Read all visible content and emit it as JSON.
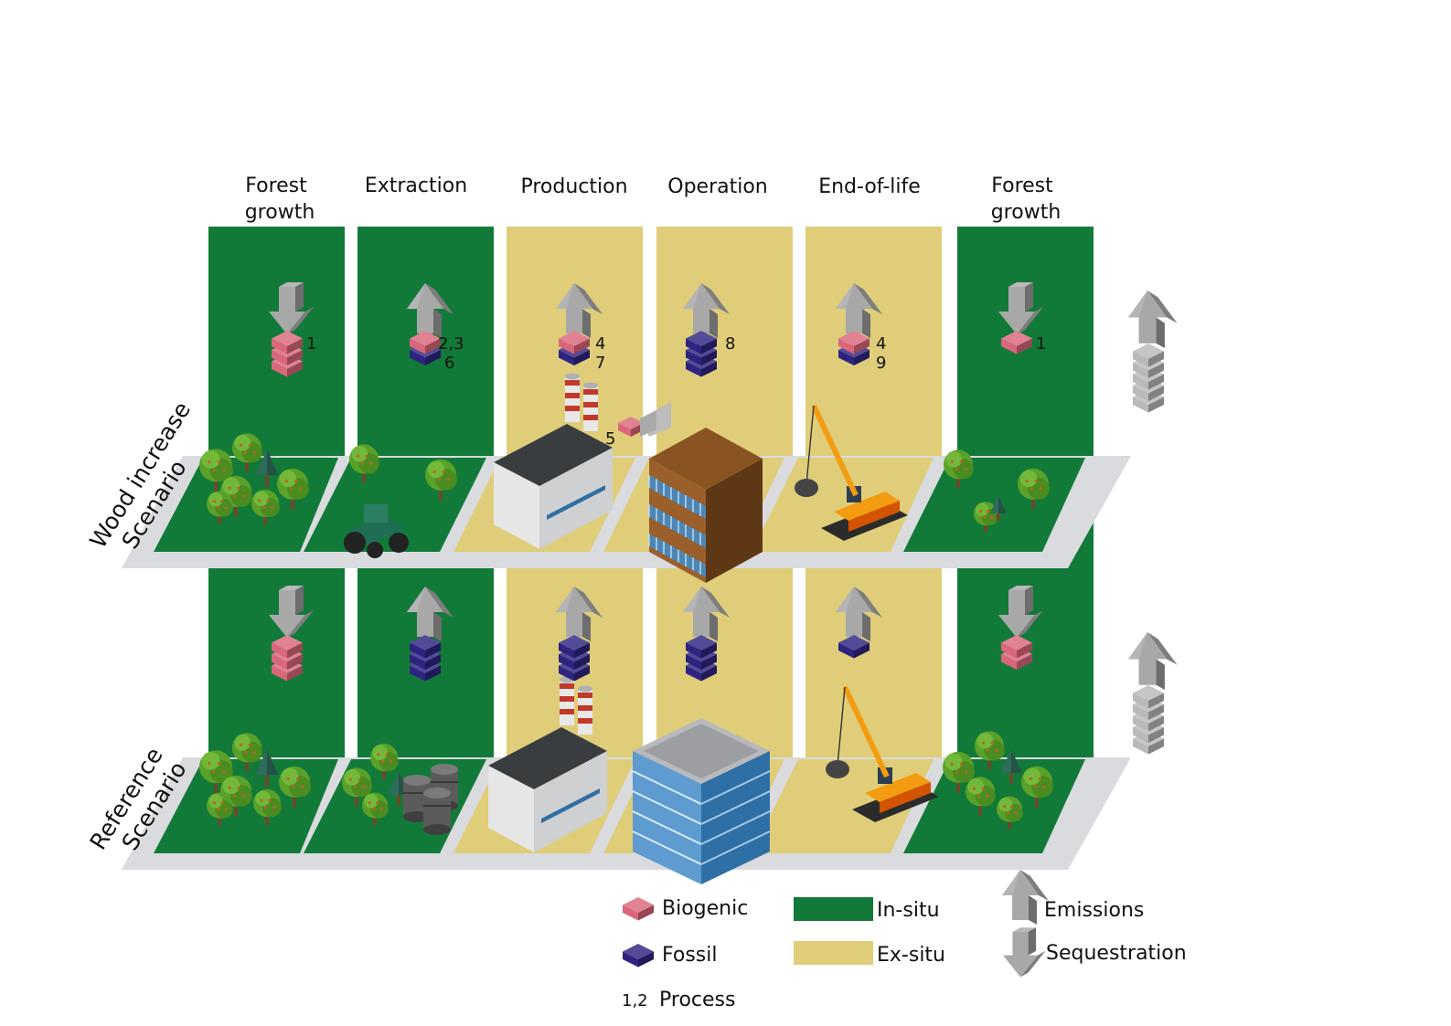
{
  "phases": [
    {
      "line1": "Forest",
      "line2": "growth",
      "situ": "in"
    },
    {
      "line1": "Extraction",
      "line2": "",
      "situ": "in"
    },
    {
      "line1": "Production",
      "line2": "",
      "situ": "ex"
    },
    {
      "line1": "Operation",
      "line2": "",
      "situ": "ex"
    },
    {
      "line1": "End-of-life",
      "line2": "",
      "situ": "ex"
    },
    {
      "line1": "Forest",
      "line2": "growth",
      "situ": "in"
    }
  ],
  "scenarios": {
    "wood": {
      "line1": "Wood increase",
      "line2": "Scenario"
    },
    "reference": {
      "line1": "Reference",
      "line2": "Scenario"
    }
  },
  "wood_processes": [
    {
      "arrow": "sequestration",
      "cubes": [
        "bio",
        "bio",
        "bio"
      ],
      "labels": [
        "1"
      ]
    },
    {
      "arrow": "emission",
      "cubes": [
        "bio",
        "fossil"
      ],
      "labels": [
        "2,3",
        "6"
      ]
    },
    {
      "arrow": "emission",
      "cubes": [
        "bio",
        "fossil"
      ],
      "labels": [
        "4",
        "7"
      ]
    },
    {
      "arrow": "emission",
      "cubes": [
        "fossil",
        "fossil",
        "fossil"
      ],
      "labels": [
        "8"
      ]
    },
    {
      "arrow": "emission",
      "cubes": [
        "bio",
        "fossil"
      ],
      "labels": [
        "4",
        "9"
      ]
    },
    {
      "arrow": "sequestration",
      "cubes": [
        "bio"
      ],
      "labels": [
        "1"
      ]
    }
  ],
  "wood_extra_label": "5",
  "reference_processes": [
    {
      "arrow": "sequestration",
      "cubes": [
        "bio",
        "bio",
        "bio"
      ]
    },
    {
      "arrow": "emission",
      "cubes": [
        "fossil",
        "fossil",
        "fossil"
      ]
    },
    {
      "arrow": "emission",
      "cubes": [
        "fossil",
        "fossil",
        "fossil"
      ]
    },
    {
      "arrow": "emission",
      "cubes": [
        "fossil",
        "fossil",
        "fossil"
      ]
    },
    {
      "arrow": "emission",
      "cubes": [
        "fossil"
      ]
    },
    {
      "arrow": "sequestration",
      "cubes": [
        "bio",
        "bio"
      ]
    }
  ],
  "totals": {
    "wood_grey_cubes": 5,
    "reference_grey_cubes": 5
  },
  "legend": {
    "biogenic": "Biogenic",
    "fossil": "Fossil",
    "process_sample": "1,2",
    "process": "Process",
    "in_situ": "In-situ",
    "ex_situ": "Ex-situ",
    "emissions": "Emissions",
    "sequestration": "Sequestration"
  },
  "colors": {
    "in_situ": "#127a39",
    "ex_situ": "#dfcd79",
    "biogenic": "#d9667a",
    "fossil": "#2e2381",
    "arrow": "#a8a8a8",
    "base": "#d9dbde"
  }
}
